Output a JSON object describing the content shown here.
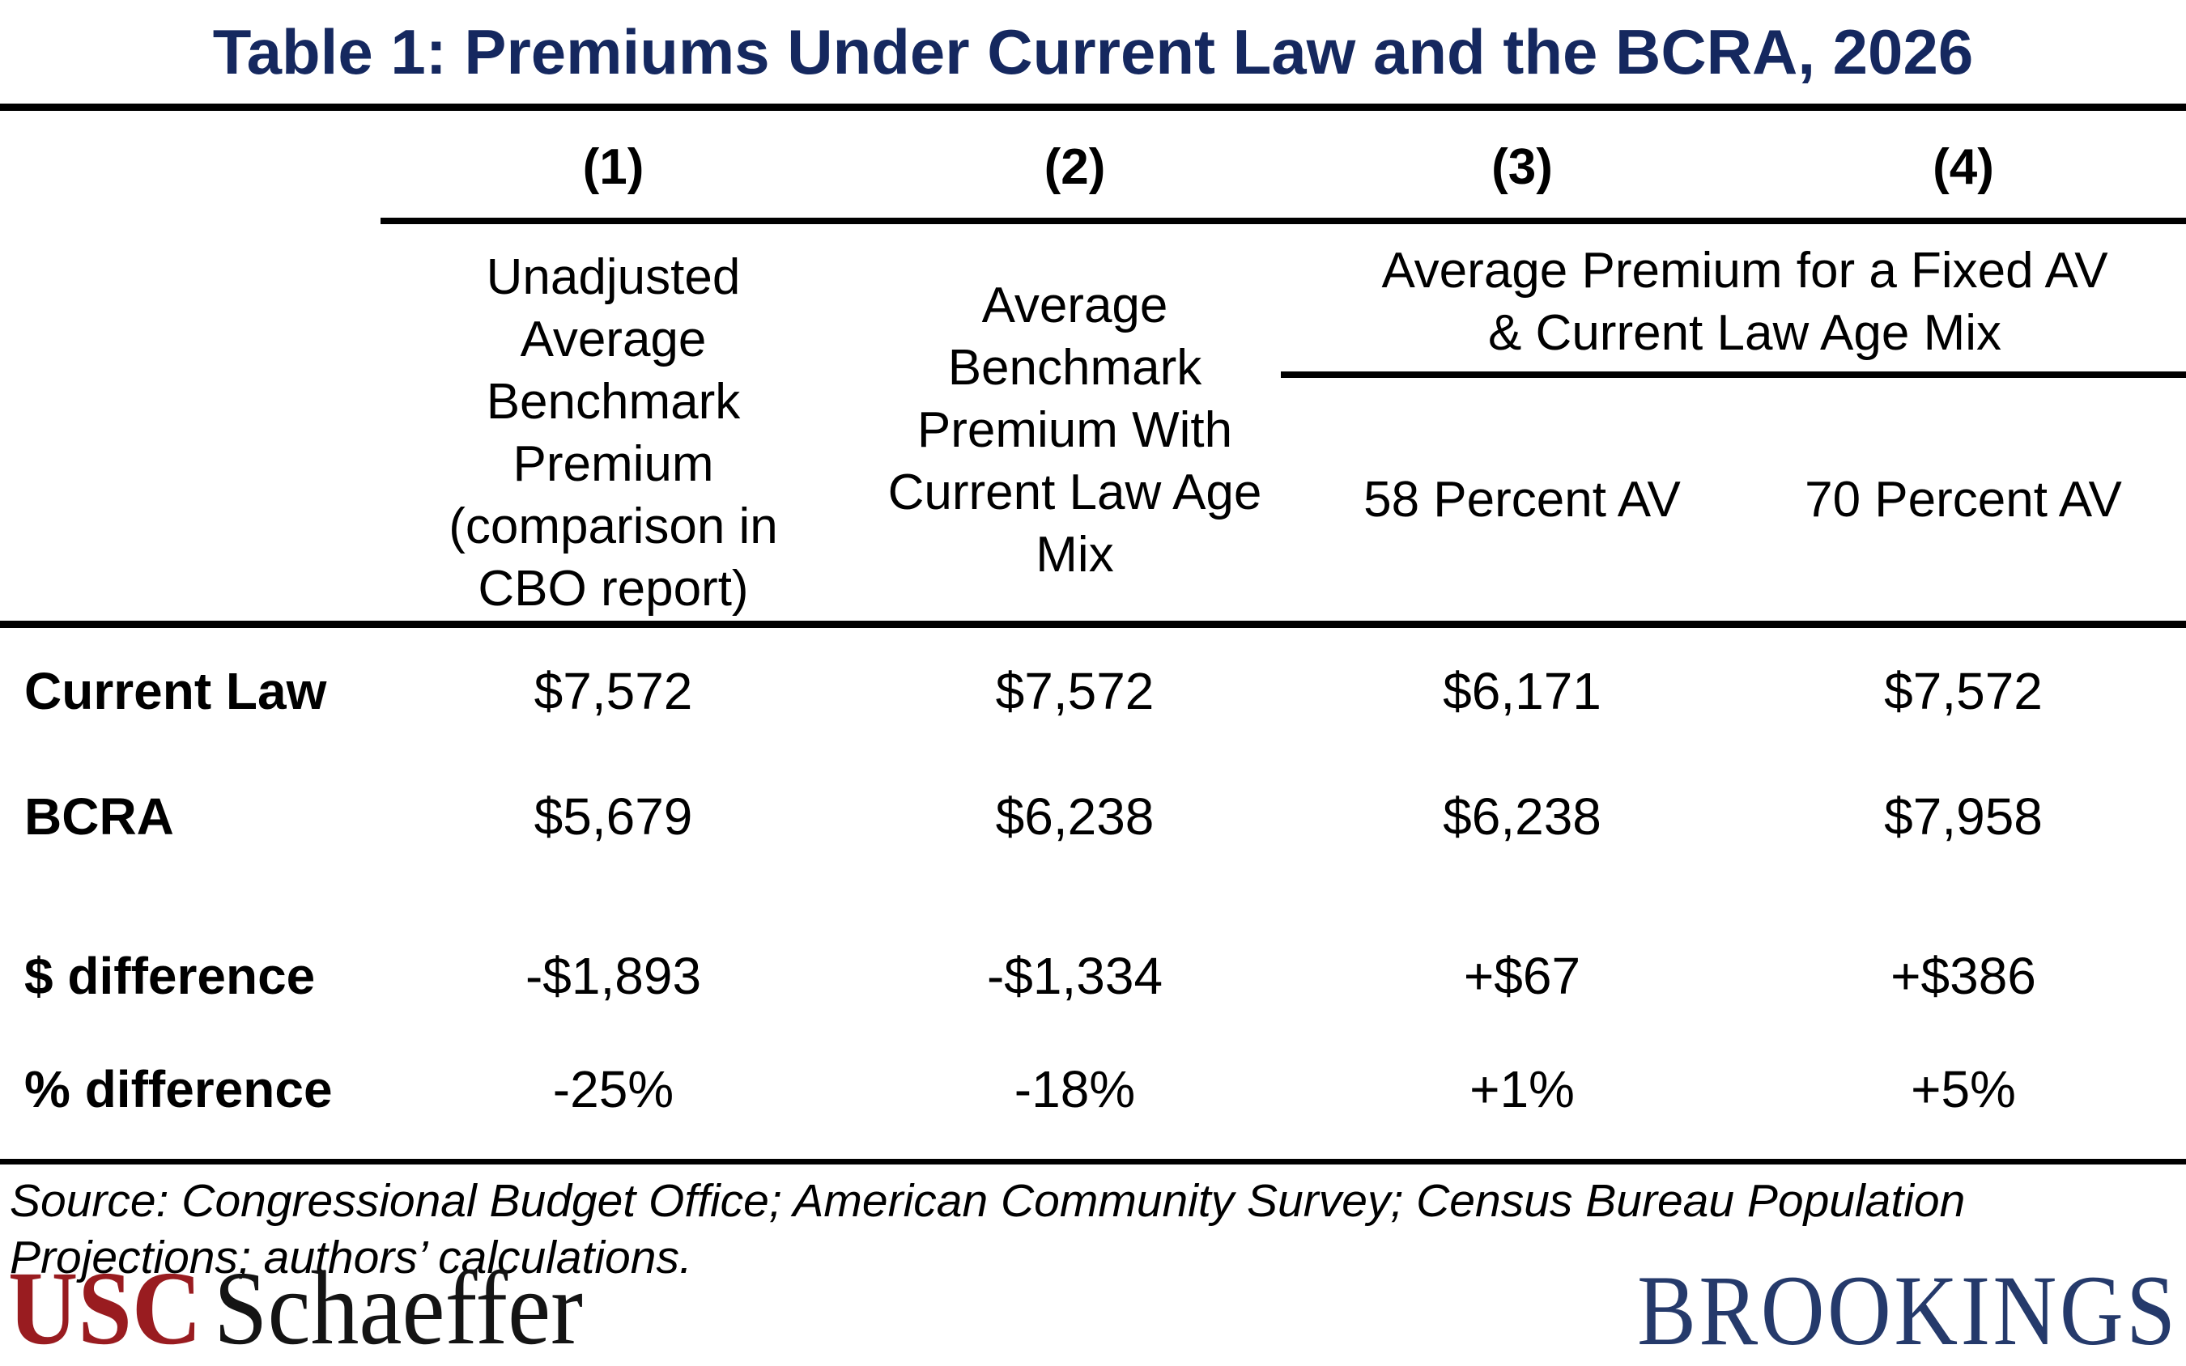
{
  "title": "Table 1: Premiums Under Current Law and the BCRA, 2026",
  "header": {
    "column_numbers": [
      "(1)",
      "(2)",
      "(3)",
      "(4)"
    ],
    "col1_lines": [
      "Unadjusted",
      "Average",
      "Benchmark",
      "Premium",
      "(comparison in",
      "CBO report)"
    ],
    "col2_lines": [
      "Average",
      "Benchmark",
      "Premium With",
      "Current Law Age",
      "Mix"
    ],
    "group_lines": [
      "Average Premium for a Fixed AV",
      "& Current Law Age Mix"
    ],
    "col3_label": "58 Percent AV",
    "col4_label": "70 Percent AV"
  },
  "rows": [
    {
      "label": "Current Law",
      "values": [
        "$7,572",
        "$7,572",
        "$6,171",
        "$7,572"
      ]
    },
    {
      "label": "BCRA",
      "values": [
        "$5,679",
        "$6,238",
        "$6,238",
        "$7,958"
      ]
    },
    {
      "label": "$ difference",
      "values": [
        "-$1,893",
        "-$1,334",
        "+$67",
        "+$386"
      ]
    },
    {
      "label": "% difference",
      "values": [
        "-25%",
        "-18%",
        "+1%",
        "+5%"
      ]
    }
  ],
  "source_lines": [
    "Source: Congressional Budget Office; American Community Survey; Census Bureau Population",
    "Projections; authors’ calculations."
  ],
  "logos": {
    "usc_text": "USC",
    "schaeffer_text": "Schaeffer",
    "brookings_text": "BROOKINGS"
  },
  "colors": {
    "title_navy": "#15285F",
    "usc_cardinal": "#991C20",
    "brookings_navy": "#253A6B"
  },
  "chart_data": {
    "type": "table",
    "title": "Table 1: Premiums Under Current Law and the BCRA, 2026",
    "columns": [
      "Unadjusted Average Benchmark Premium (comparison in CBO report)",
      "Average Benchmark Premium With Current Law Age Mix",
      "Average Premium for a Fixed AV & Current Law Age Mix - 58 Percent AV",
      "Average Premium for a Fixed AV & Current Law Age Mix - 70 Percent AV"
    ],
    "rows": [
      {
        "label": "Current Law",
        "values": [
          "$7,572",
          "$7,572",
          "$6,171",
          "$7,572"
        ]
      },
      {
        "label": "BCRA",
        "values": [
          "$5,679",
          "$6,238",
          "$6,238",
          "$7,958"
        ]
      },
      {
        "label": "$ difference",
        "values": [
          "-$1,893",
          "-$1,334",
          "+$67",
          "+$386"
        ]
      },
      {
        "label": "% difference",
        "values": [
          "-25%",
          "-18%",
          "+1%",
          "+5%"
        ]
      }
    ]
  }
}
